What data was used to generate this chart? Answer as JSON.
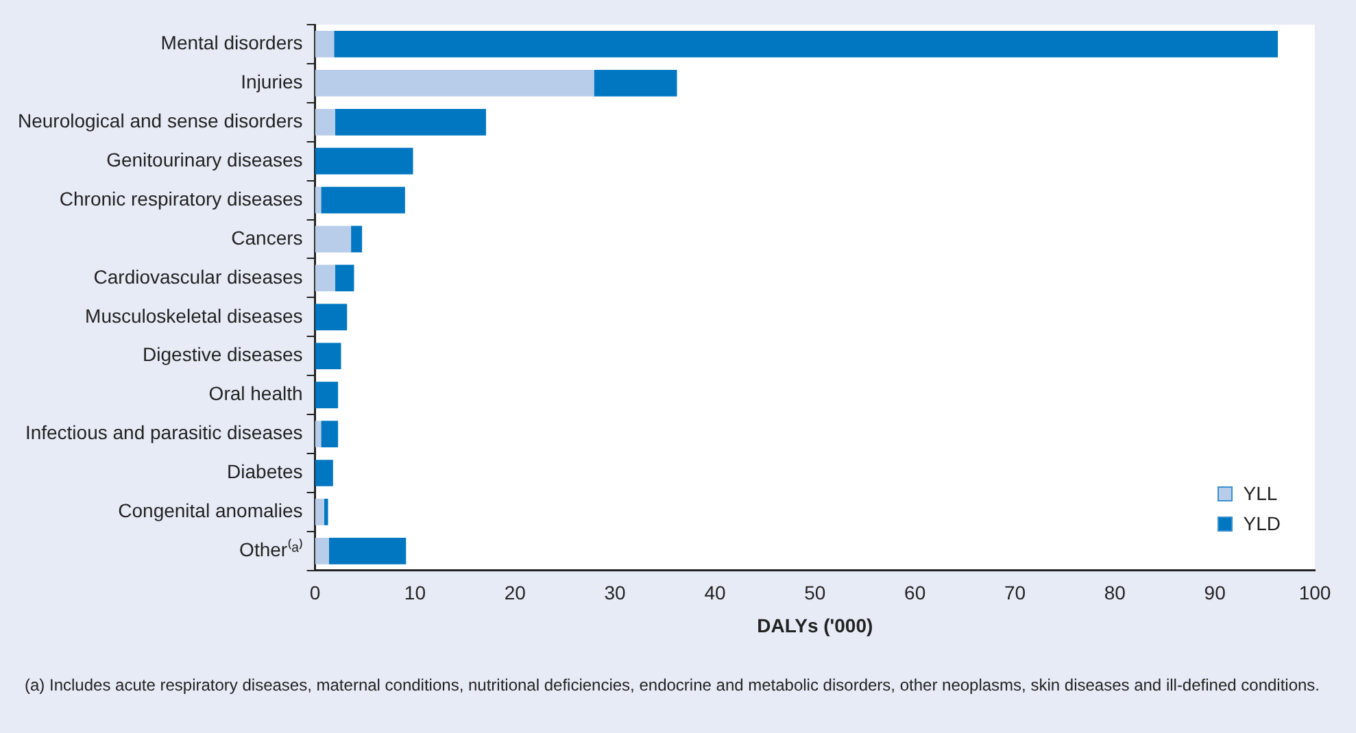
{
  "chart_data": {
    "type": "bar",
    "orientation": "horizontal",
    "stacked": true,
    "categories": [
      "Mental disorders",
      "Injuries",
      "Neurological and sense disorders",
      "Genitourinary diseases",
      "Chronic respiratory diseases",
      "Cancers",
      "Cardiovascular diseases",
      "Musculoskeletal diseases",
      "Digestive diseases",
      "Oral health",
      "Infectious and parasitic diseases",
      "Diabetes",
      "Congenital anomalies",
      "Other⁽ᵃ⁾"
    ],
    "series": [
      {
        "name": "YLL",
        "color": "#b8cde9",
        "values": [
          1.9,
          27.9,
          2.0,
          0,
          0.6,
          3.6,
          2.0,
          0,
          0,
          0,
          0.6,
          0,
          0.9,
          1.4
        ]
      },
      {
        "name": "YLD",
        "color": "#0077c0",
        "values": [
          94.4,
          8.3,
          15.1,
          9.8,
          8.4,
          1.1,
          1.9,
          3.2,
          2.6,
          2.3,
          1.7,
          1.8,
          0.4,
          7.7
        ]
      }
    ],
    "xlabel": "DALYs ('000)",
    "xlim": [
      0,
      100
    ],
    "xticks": [
      0,
      10,
      20,
      30,
      40,
      50,
      60,
      70,
      80,
      90,
      100
    ],
    "grid": false,
    "legend": "bottom right",
    "annotations": [
      "(a)  Includes acute respiratory diseases, maternal conditions, nutritional deficiencies, endocrine and metabolic disorders, other neoplasms, skin diseases and ill-defined conditions."
    ]
  }
}
